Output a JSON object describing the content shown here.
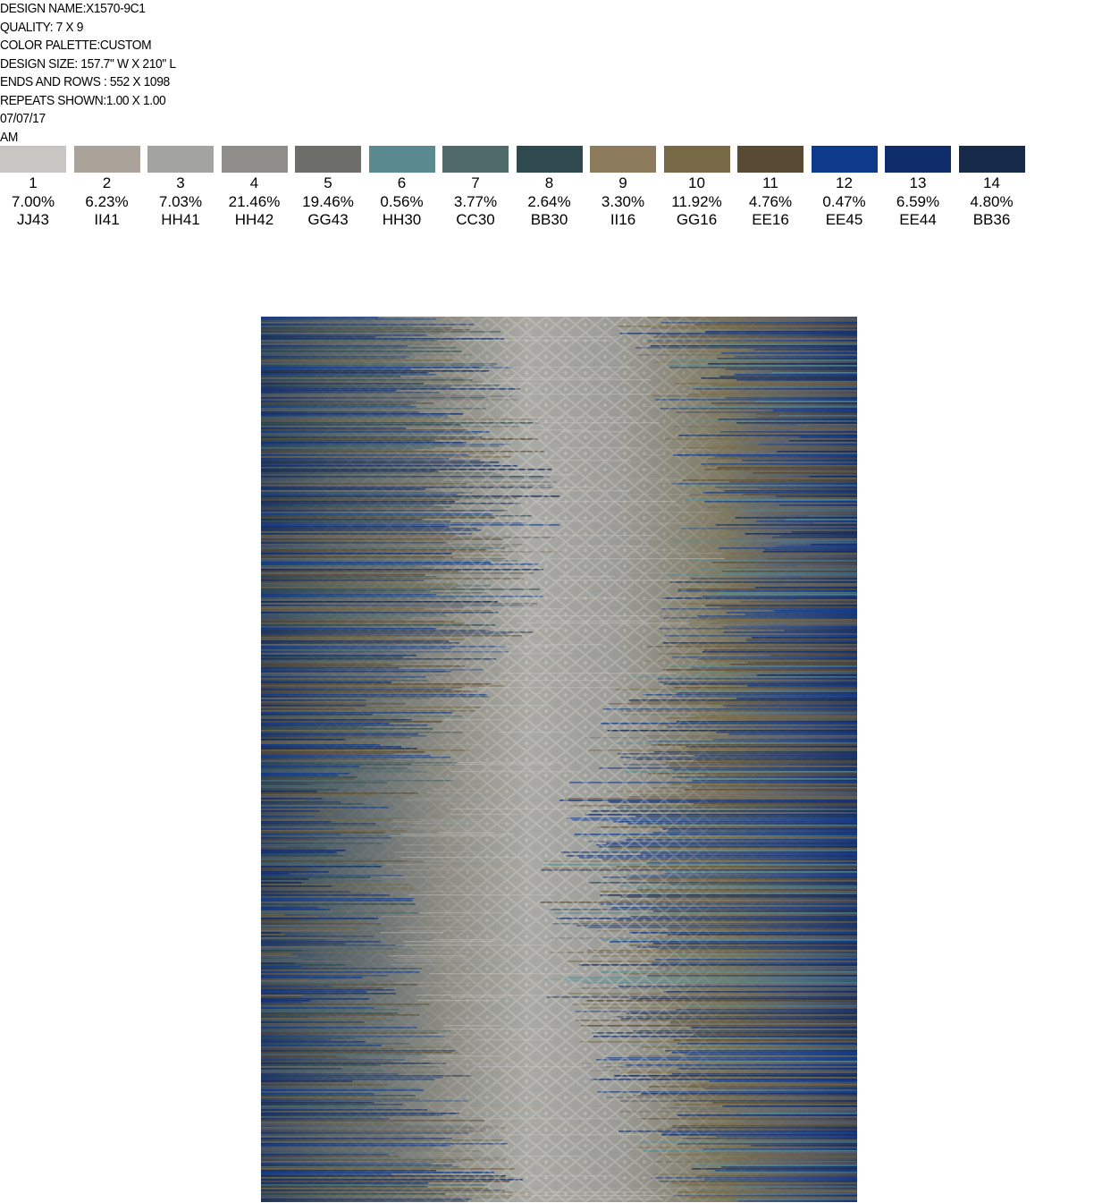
{
  "header": {
    "design_name": "DESIGN NAME:X1570-9C1",
    "quality": "QUALITY: 7 X 9",
    "color_palette": "COLOR PALETTE:CUSTOM",
    "design_size": "DESIGN SIZE: 157.7\" W X 210\" L",
    "ends_rows": "ENDS AND ROWS : 552 X 1098",
    "repeats": "REPEATS SHOWN:1.00 X 1.00",
    "date": "07/07/17",
    "time": "AM"
  },
  "palette": [
    {
      "index": "1",
      "percent": "7.00%",
      "code": "JJ43",
      "color": "#c8c6c2"
    },
    {
      "index": "2",
      "percent": "6.23%",
      "code": "II41",
      "color": "#aaa39a"
    },
    {
      "index": "3",
      "percent": "7.03%",
      "code": "HH41",
      "color": "#a3a3a1"
    },
    {
      "index": "4",
      "percent": "21.46%",
      "code": "HH42",
      "color": "#8e8d8a"
    },
    {
      "index": "5",
      "percent": "19.46%",
      "code": "GG43",
      "color": "#6d6e6a"
    },
    {
      "index": "6",
      "percent": "0.56%",
      "code": "HH30",
      "color": "#5a8a8f"
    },
    {
      "index": "7",
      "percent": "3.77%",
      "code": "CC30",
      "color": "#50696b"
    },
    {
      "index": "8",
      "percent": "2.64%",
      "code": "BB30",
      "color": "#2e4a4e"
    },
    {
      "index": "9",
      "percent": "3.30%",
      "code": "II16",
      "color": "#8c7b5c"
    },
    {
      "index": "10",
      "percent": "11.92%",
      "code": "GG16",
      "color": "#776846"
    },
    {
      "index": "11",
      "percent": "4.76%",
      "code": "EE16",
      "color": "#584a33"
    },
    {
      "index": "12",
      "percent": "0.47%",
      "code": "EE45",
      "color": "#0e3a8c"
    },
    {
      "index": "13",
      "percent": "6.59%",
      "code": "EE44",
      "color": "#0f2c6b"
    },
    {
      "index": "14",
      "percent": "4.80%",
      "code": "BB36",
      "color": "#182a4a"
    }
  ]
}
